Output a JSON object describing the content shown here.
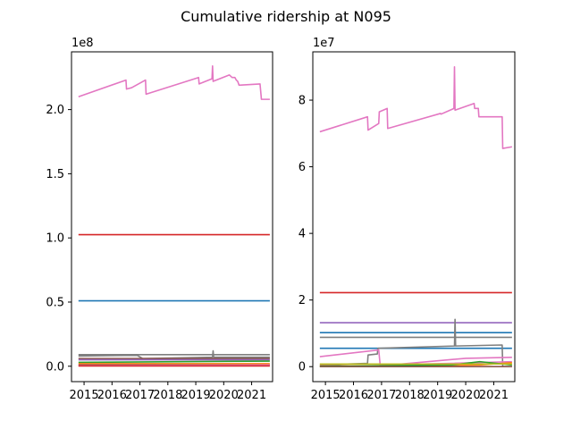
{
  "figure": {
    "title": "Cumulative ridership at N095"
  },
  "chart_data": [
    {
      "type": "line",
      "title": "",
      "xlabel": "",
      "ylabel": "",
      "y_scale_label": "1e8",
      "y_scale": 100000000,
      "xlim": [
        2014.55,
        2021.75
      ],
      "ylim": [
        -0.12,
        2.45
      ],
      "x_ticks": [
        2015,
        2016,
        2017,
        2018,
        2019,
        2020,
        2021
      ],
      "x_tick_labels": [
        "2015",
        "2016",
        "2017",
        "2018",
        "2019",
        "2020",
        "2021"
      ],
      "y_ticks": [
        0.0,
        0.5,
        1.0,
        1.5,
        2.0
      ],
      "y_tick_labels": [
        "0.0",
        "0.5",
        "1.0",
        "1.5",
        "2.0"
      ],
      "series": [
        {
          "color": "#d62728",
          "points": [
            [
              2014.8,
              1.025
            ],
            [
              2021.65,
              1.025
            ]
          ]
        },
        {
          "color": "#1f77b4",
          "points": [
            [
              2014.8,
              0.51
            ],
            [
              2021.65,
              0.51
            ]
          ]
        },
        {
          "color": "#7f7f7f",
          "points": [
            [
              2014.8,
              0.09
            ],
            [
              2021.65,
              0.09
            ]
          ]
        },
        {
          "color": "#7f7f7f",
          "points": [
            [
              2014.8,
              0.08
            ],
            [
              2016.9,
              0.085
            ],
            [
              2017.1,
              0.06
            ],
            [
              2019.6,
              0.07
            ],
            [
              2019.62,
              0.12
            ],
            [
              2019.64,
              0.07
            ],
            [
              2021.65,
              0.07
            ]
          ]
        },
        {
          "color": "#8c564b",
          "points": [
            [
              2014.8,
              0.06
            ],
            [
              2021.65,
              0.06
            ]
          ]
        },
        {
          "color": "#9467bd",
          "points": [
            [
              2014.8,
              0.05
            ],
            [
              2021.65,
              0.05
            ]
          ]
        },
        {
          "color": "#2ca02c",
          "points": [
            [
              2014.8,
              0.03
            ],
            [
              2021.65,
              0.04
            ]
          ]
        },
        {
          "color": "#ff7f0e",
          "points": [
            [
              2014.8,
              0.02
            ],
            [
              2021.65,
              0.02
            ]
          ]
        },
        {
          "color": "#8c564b",
          "points": [
            [
              2014.8,
              0.01
            ],
            [
              2021.65,
              0.01
            ]
          ]
        },
        {
          "color": "#e377c2",
          "points": [
            [
              2014.8,
              0.005
            ],
            [
              2021.65,
              0.01
            ]
          ]
        },
        {
          "color": "#d62728",
          "points": [
            [
              2014.8,
              0.002
            ],
            [
              2021.65,
              0.002
            ]
          ]
        },
        {
          "color": "#e377c2",
          "points": [
            [
              2014.8,
              2.1
            ],
            [
              2016.5,
              2.23
            ],
            [
              2016.52,
              2.16
            ],
            [
              2016.7,
              2.17
            ],
            [
              2017.2,
              2.23
            ],
            [
              2017.22,
              2.12
            ],
            [
              2019.1,
              2.25
            ],
            [
              2019.12,
              2.2
            ],
            [
              2019.58,
              2.24
            ],
            [
              2019.6,
              2.34
            ],
            [
              2019.62,
              2.22
            ],
            [
              2020.2,
              2.27
            ],
            [
              2020.3,
              2.25
            ],
            [
              2020.4,
              2.25
            ],
            [
              2020.45,
              2.23
            ],
            [
              2020.5,
              2.22
            ],
            [
              2020.55,
              2.19
            ],
            [
              2021.3,
              2.2
            ],
            [
              2021.35,
              2.08
            ],
            [
              2021.65,
              2.08
            ]
          ]
        }
      ]
    },
    {
      "type": "line",
      "title": "",
      "xlabel": "",
      "ylabel": "",
      "y_scale_label": "1e7",
      "y_scale": 10000000,
      "xlim": [
        2014.55,
        2021.75
      ],
      "ylim": [
        -0.45,
        9.45
      ],
      "x_ticks": [
        2015,
        2016,
        2017,
        2018,
        2019,
        2020,
        2021
      ],
      "x_tick_labels": [
        "2015",
        "2016",
        "2017",
        "2018",
        "2019",
        "2020",
        "2021"
      ],
      "y_ticks": [
        0,
        2,
        4,
        6,
        8
      ],
      "y_tick_labels": [
        "0",
        "2",
        "4",
        "6",
        "8"
      ],
      "series": [
        {
          "color": "#d62728",
          "points": [
            [
              2014.8,
              2.22
            ],
            [
              2021.65,
              2.22
            ]
          ]
        },
        {
          "color": "#9467bd",
          "points": [
            [
              2014.8,
              1.32
            ],
            [
              2021.65,
              1.32
            ]
          ]
        },
        {
          "color": "#1f77b4",
          "points": [
            [
              2014.8,
              1.02
            ],
            [
              2021.65,
              1.02
            ]
          ]
        },
        {
          "color": "#7f7f7f",
          "points": [
            [
              2014.8,
              0.88
            ],
            [
              2021.65,
              0.88
            ]
          ]
        },
        {
          "color": "#1f77b4",
          "points": [
            [
              2014.8,
              0.55
            ],
            [
              2021.65,
              0.55
            ]
          ]
        },
        {
          "color": "#7f7f7f",
          "points": [
            [
              2014.8,
              0.05
            ],
            [
              2016.5,
              0.1
            ],
            [
              2016.52,
              0.35
            ],
            [
              2016.85,
              0.38
            ],
            [
              2016.87,
              0.55
            ],
            [
              2019.6,
              0.62
            ],
            [
              2019.62,
              1.42
            ],
            [
              2019.64,
              0.62
            ],
            [
              2021.3,
              0.65
            ],
            [
              2021.32,
              0.0
            ],
            [
              2021.65,
              0.0
            ]
          ]
        },
        {
          "color": "#e377c2",
          "points": [
            [
              2014.8,
              0.3
            ],
            [
              2016.9,
              0.5
            ],
            [
              2016.95,
              0.05
            ],
            [
              2019.5,
              0.1
            ],
            [
              2021.65,
              0.15
            ]
          ]
        },
        {
          "color": "#e377c2",
          "points": [
            [
              2016.95,
              0.02
            ],
            [
              2020.0,
              0.25
            ],
            [
              2021.65,
              0.28
            ]
          ]
        },
        {
          "color": "#ff7f0e",
          "points": [
            [
              2014.8,
              0.02
            ],
            [
              2020.5,
              0.05
            ],
            [
              2021.65,
              0.12
            ]
          ]
        },
        {
          "color": "#2ca02c",
          "points": [
            [
              2014.8,
              0.01
            ],
            [
              2019.5,
              0.05
            ],
            [
              2020.5,
              0.15
            ],
            [
              2021.65,
              0.05
            ]
          ]
        },
        {
          "color": "#bcbd22",
          "points": [
            [
              2014.8,
              0.08
            ],
            [
              2021.65,
              0.08
            ]
          ]
        },
        {
          "color": "#8c564b",
          "points": [
            [
              2014.8,
              0.0
            ],
            [
              2021.65,
              0.0
            ]
          ]
        },
        {
          "color": "#e377c2",
          "points": [
            [
              2014.8,
              7.05
            ],
            [
              2016.5,
              7.5
            ],
            [
              2016.52,
              7.1
            ],
            [
              2016.9,
              7.3
            ],
            [
              2016.92,
              7.65
            ],
            [
              2017.2,
              7.75
            ],
            [
              2017.22,
              7.15
            ],
            [
              2019.1,
              7.6
            ],
            [
              2019.12,
              7.58
            ],
            [
              2019.58,
              7.75
            ],
            [
              2019.6,
              9.0
            ],
            [
              2019.62,
              7.7
            ],
            [
              2020.3,
              7.9
            ],
            [
              2020.32,
              7.75
            ],
            [
              2020.45,
              7.75
            ],
            [
              2020.47,
              7.5
            ],
            [
              2021.3,
              7.5
            ],
            [
              2021.32,
              6.55
            ],
            [
              2021.65,
              6.6
            ]
          ]
        }
      ]
    }
  ]
}
